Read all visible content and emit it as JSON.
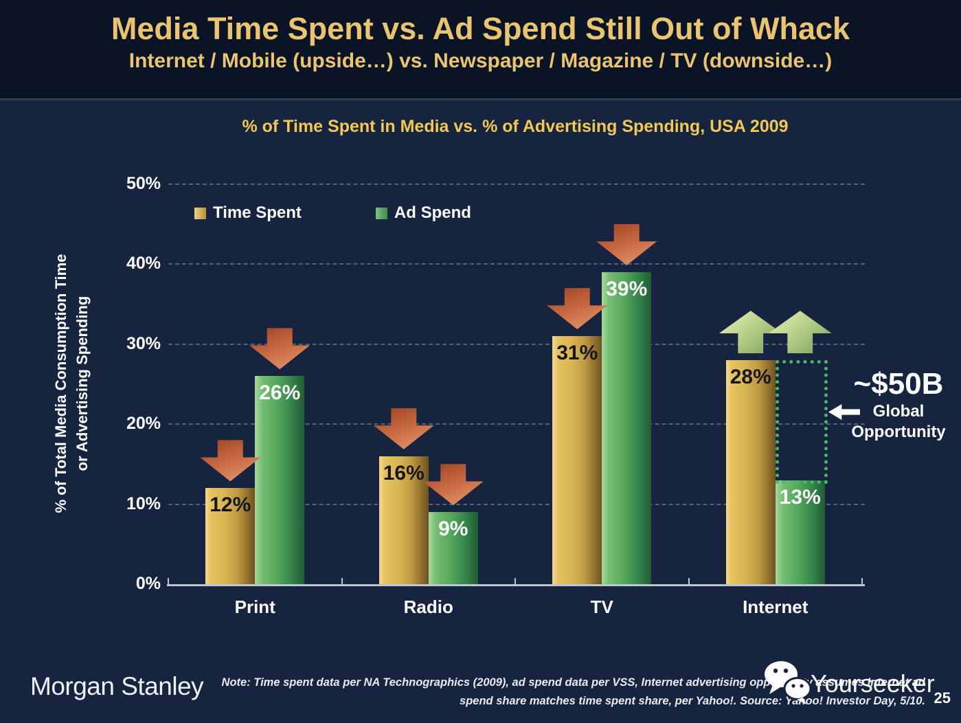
{
  "slide": {
    "title": "Media Time Spent vs. Ad Spend Still Out of Whack",
    "subtitle": "Internet / Mobile (upside…) vs. Newspaper / Magazine / TV (downside…)",
    "page_number": "25"
  },
  "footer": {
    "brand": "Morgan Stanley",
    "note_line1": "Note: Time spent data per NA Technographics (2009), ad spend data per VSS, Internet advertising opportunity assumes Internet ad",
    "note_line2": "spend share matches time spent share, per Yahoo!. Source: Yahoo! Investor Day, 5/10.",
    "watermark": "Yourseeker"
  },
  "chart_data": {
    "type": "bar",
    "title": "% of Time Spent in Media vs. % of Advertising Spending, USA 2009",
    "ylabel": "% of Total Media Consumption Time or Advertising Spending",
    "ylabel_line1": "% of Total Media Consumption Time",
    "ylabel_line2": "or Advertising Spending",
    "categories": [
      "Print",
      "Radio",
      "TV",
      "Internet"
    ],
    "series": [
      {
        "name": "Time Spent",
        "color_key": "gold",
        "values": [
          12,
          16,
          31,
          28
        ]
      },
      {
        "name": "Ad Spend",
        "color_key": "green",
        "values": [
          26,
          9,
          39,
          13
        ]
      }
    ],
    "trend_arrows": {
      "Print": [
        "down",
        "down"
      ],
      "Radio": [
        "down",
        "down"
      ],
      "TV": [
        "down",
        "down"
      ],
      "Internet": [
        "up",
        "up"
      ]
    },
    "ylim": [
      0,
      50
    ],
    "yticks": [
      "0%",
      "10%",
      "20%",
      "30%",
      "40%",
      "50%"
    ],
    "grid": "dashed horizontal gridlines every 10%",
    "legend_position": "top-left",
    "annotation": {
      "headline": "~$50B",
      "line1": "Global",
      "line2": "Opportunity",
      "target": "gap between Internet ad spend 13% and time spent 28%"
    },
    "colors": {
      "gold": "#d9b452",
      "green": "#55a75d",
      "down_arrow": "#cc6f46",
      "up_arrow": "#b9d189",
      "title_gold": "#f2c84f",
      "header_gold": "#eac46e",
      "background": "#172440",
      "header_background": "#0a1426",
      "gap_dots": "#45bb6a"
    }
  }
}
